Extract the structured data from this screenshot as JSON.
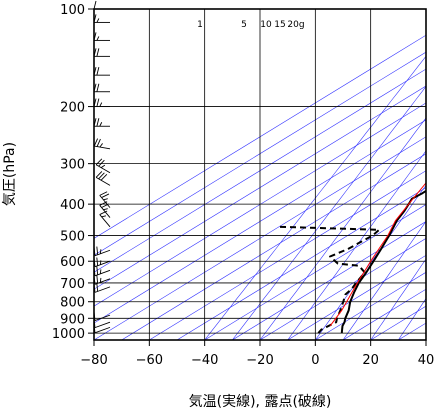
{
  "chart_data": {
    "type": "line",
    "subtype": "skew-T log-P thermodynamic diagram",
    "title": "",
    "xlabel": "気温(実線), 露点(破線)",
    "ylabel": "気圧(hPa)",
    "xlim": [
      -80,
      40
    ],
    "ylim": [
      1050,
      100
    ],
    "y_scale": "log",
    "x_ticks": [
      -80,
      -60,
      -40,
      -20,
      0,
      20,
      40
    ],
    "y_ticks": [
      100,
      200,
      300,
      400,
      500,
      600,
      700,
      800,
      900,
      1000
    ],
    "grid": true,
    "mixing_ratio_labels": [
      "1",
      "5",
      "10",
      "15",
      "20g"
    ],
    "series": [
      {
        "role": "temperature",
        "style": "solid",
        "color": "#000000",
        "points": [
          {
            "p": 1000,
            "t": 5.5
          },
          {
            "p": 975,
            "t": 3.5
          },
          {
            "p": 950,
            "t": 1.5
          },
          {
            "p": 925,
            "t": 0.0
          },
          {
            "p": 900,
            "t": -2.0
          },
          {
            "p": 850,
            "t": -5.5
          },
          {
            "p": 800,
            "t": -10.0
          },
          {
            "p": 750,
            "t": -14.0
          },
          {
            "p": 700,
            "t": -18.0
          },
          {
            "p": 650,
            "t": -21.5
          },
          {
            "p": 600,
            "t": -25.5
          },
          {
            "p": 550,
            "t": -30.0
          },
          {
            "p": 500,
            "t": -35.0
          },
          {
            "p": 470,
            "t": -38.5
          },
          {
            "p": 450,
            "t": -41.0
          },
          {
            "p": 420,
            "t": -44.0
          },
          {
            "p": 400,
            "t": -46.5
          },
          {
            "p": 385,
            "t": -48.5
          },
          {
            "p": 370,
            "t": -48.0
          },
          {
            "p": 350,
            "t": -48.0
          },
          {
            "p": 330,
            "t": -47.5
          },
          {
            "p": 300,
            "t": -46.5
          },
          {
            "p": 280,
            "t": -48.0
          },
          {
            "p": 260,
            "t": -47.5
          },
          {
            "p": 240,
            "t": -48.0
          },
          {
            "p": 220,
            "t": -47.5
          },
          {
            "p": 200,
            "t": -48.0
          },
          {
            "p": 180,
            "t": -47.0
          },
          {
            "p": 160,
            "t": -46.5
          },
          {
            "p": 140,
            "t": -46.0
          },
          {
            "p": 120,
            "t": -47.0
          },
          {
            "p": 110,
            "t": -48.0
          },
          {
            "p": 100,
            "t": -49.0
          }
        ]
      },
      {
        "role": "dew point",
        "style": "dashed",
        "color": "#000000",
        "points": [
          {
            "p": 1000,
            "t": -3.0
          },
          {
            "p": 975,
            "t": -4.0
          },
          {
            "p": 950,
            "t": -3.5
          },
          {
            "p": 925,
            "t": -3.0
          },
          {
            "p": 900,
            "t": -5.0
          },
          {
            "p": 850,
            "t": -8.5
          },
          {
            "p": 800,
            "t": -12.5
          },
          {
            "p": 760,
            "t": -16.0
          },
          {
            "p": 730,
            "t": -17.0
          },
          {
            "p": 700,
            "t": -19.0
          },
          {
            "p": 650,
            "t": -22.0
          },
          {
            "p": 620,
            "t": -28.0
          },
          {
            "p": 610,
            "t": -37.0
          },
          {
            "p": 580,
            "t": -44.0
          },
          {
            "p": 550,
            "t": -42.0
          },
          {
            "p": 500,
            "t": -41.0
          },
          {
            "p": 480,
            "t": -42.0
          },
          {
            "p": 470,
            "t": -80.0
          }
        ]
      },
      {
        "role": "parcel path",
        "style": "solid",
        "color": "#ff0000",
        "points": [
          {
            "p": 950,
            "t": -3.0
          },
          {
            "p": 850,
            "t": -8.0
          },
          {
            "p": 700,
            "t": -18.5
          },
          {
            "p": 600,
            "t": -26.5
          },
          {
            "p": 500,
            "t": -35.5
          },
          {
            "p": 450,
            "t": -41.5
          },
          {
            "p": 400,
            "t": -46.5
          },
          {
            "p": 300,
            "t": -58.5
          },
          {
            "p": 250,
            "t": -66.0
          }
        ]
      }
    ],
    "wind_barbs": [
      {
        "p": 960,
        "speed_kt": 10,
        "dir_deg": 250
      },
      {
        "p": 925,
        "speed_kt": 10,
        "dir_deg": 250
      },
      {
        "p": 880,
        "speed_kt": 10,
        "dir_deg": 250
      },
      {
        "p": 720,
        "speed_kt": 20,
        "dir_deg": 250
      },
      {
        "p": 680,
        "speed_kt": 25,
        "dir_deg": 250
      },
      {
        "p": 640,
        "speed_kt": 25,
        "dir_deg": 250
      },
      {
        "p": 600,
        "speed_kt": 25,
        "dir_deg": 250
      },
      {
        "p": 555,
        "speed_kt": 25,
        "dir_deg": 250
      },
      {
        "p": 470,
        "speed_kt": 15,
        "dir_deg": 320
      },
      {
        "p": 440,
        "speed_kt": 25,
        "dir_deg": 320
      },
      {
        "p": 410,
        "speed_kt": 25,
        "dir_deg": 320
      },
      {
        "p": 350,
        "speed_kt": 30,
        "dir_deg": 300
      },
      {
        "p": 320,
        "speed_kt": 25,
        "dir_deg": 300
      },
      {
        "p": 270,
        "speed_kt": 25,
        "dir_deg": 280
      },
      {
        "p": 230,
        "speed_kt": 25,
        "dir_deg": 270
      },
      {
        "p": 200,
        "speed_kt": 25,
        "dir_deg": 270
      },
      {
        "p": 180,
        "speed_kt": 20,
        "dir_deg": 270
      },
      {
        "p": 160,
        "speed_kt": 20,
        "dir_deg": 270
      },
      {
        "p": 140,
        "speed_kt": 20,
        "dir_deg": 270
      },
      {
        "p": 125,
        "speed_kt": 15,
        "dir_deg": 270
      },
      {
        "p": 110,
        "speed_kt": 15,
        "dir_deg": 270
      },
      {
        "p": 100,
        "speed_kt": 10,
        "dir_deg": 270
      }
    ],
    "colors": {
      "isotherm": "#3333ff",
      "frame": "#000000",
      "grid": "#000000",
      "parcel": "#ff0000"
    }
  }
}
